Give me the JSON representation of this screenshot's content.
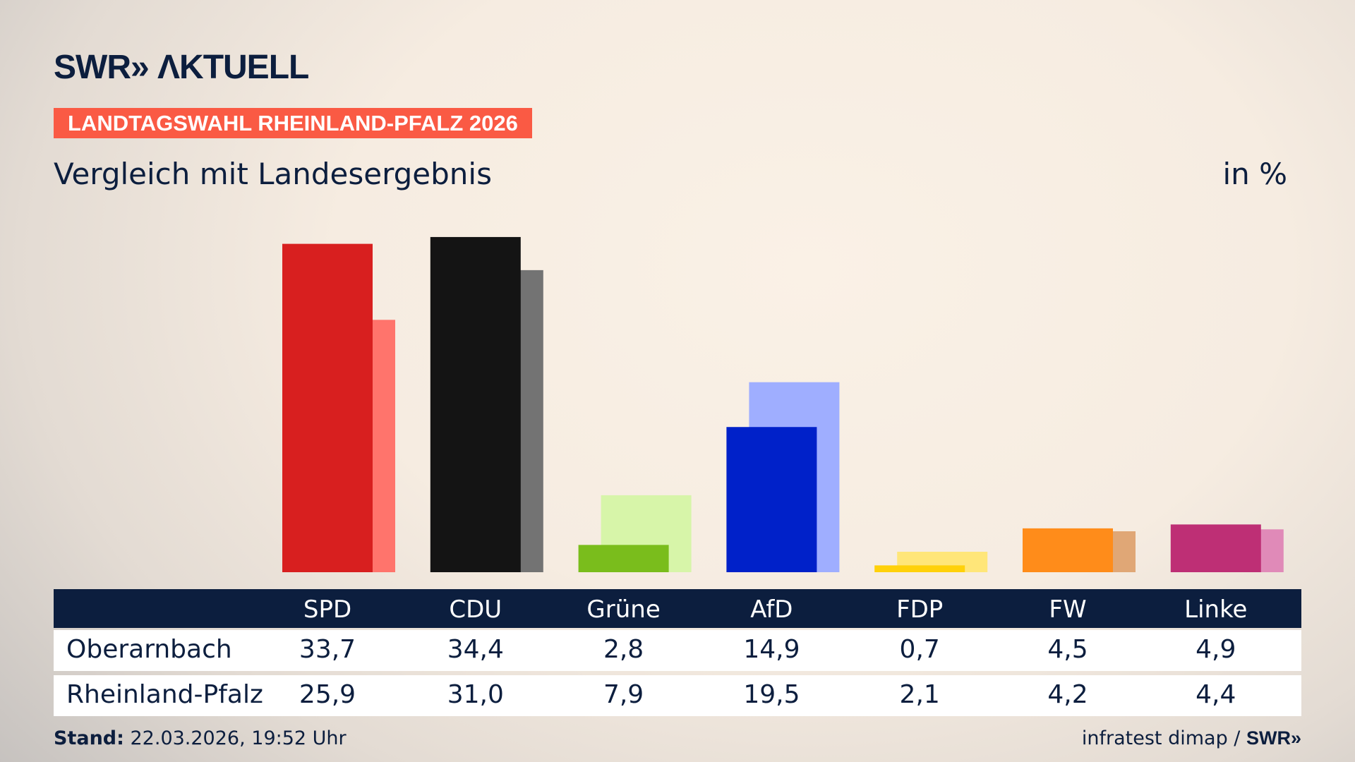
{
  "header": {
    "logo": "SWR» ΛKTUELL",
    "badge": "LANDTAGSWAHL RHEINLAND-PFALZ 2026",
    "subtitle": "Vergleich mit Landesergebnis",
    "unit": "in %"
  },
  "chart_data": {
    "type": "bar",
    "categories": [
      "SPD",
      "CDU",
      "Grüne",
      "AfD",
      "FDP",
      "FW",
      "Linke"
    ],
    "series": [
      {
        "name": "Oberarnbach",
        "values": [
          33.7,
          34.4,
          2.8,
          14.9,
          0.7,
          4.5,
          4.9
        ]
      },
      {
        "name": "Rheinland-Pfalz",
        "values": [
          25.9,
          31.0,
          7.9,
          19.5,
          2.1,
          4.2,
          4.4
        ]
      }
    ],
    "display_values": [
      [
        "33,7",
        "34,4",
        "2,8",
        "14,9",
        "0,7",
        "4,5",
        "4,9"
      ],
      [
        "25,9",
        "31,0",
        "7,9",
        "19,5",
        "2,1",
        "4,2",
        "4,4"
      ]
    ],
    "colors": [
      "#d81f1f",
      "#141414",
      "#7abd1c",
      "#0021c9",
      "#ffd10a",
      "#ff8c1a",
      "#be2f75"
    ],
    "colors_light": [
      "#ff746c",
      "#737373",
      "#d7f5a9",
      "#9faeff",
      "#ffe679",
      "#e0a776",
      "#e08ab8"
    ],
    "grid": false
  },
  "footer": {
    "stand_label": "Stand:",
    "stand_value": " 22.03.2026, 19:52 Uhr",
    "source": "infratest dimap / ",
    "source_logo": "SWR»"
  }
}
